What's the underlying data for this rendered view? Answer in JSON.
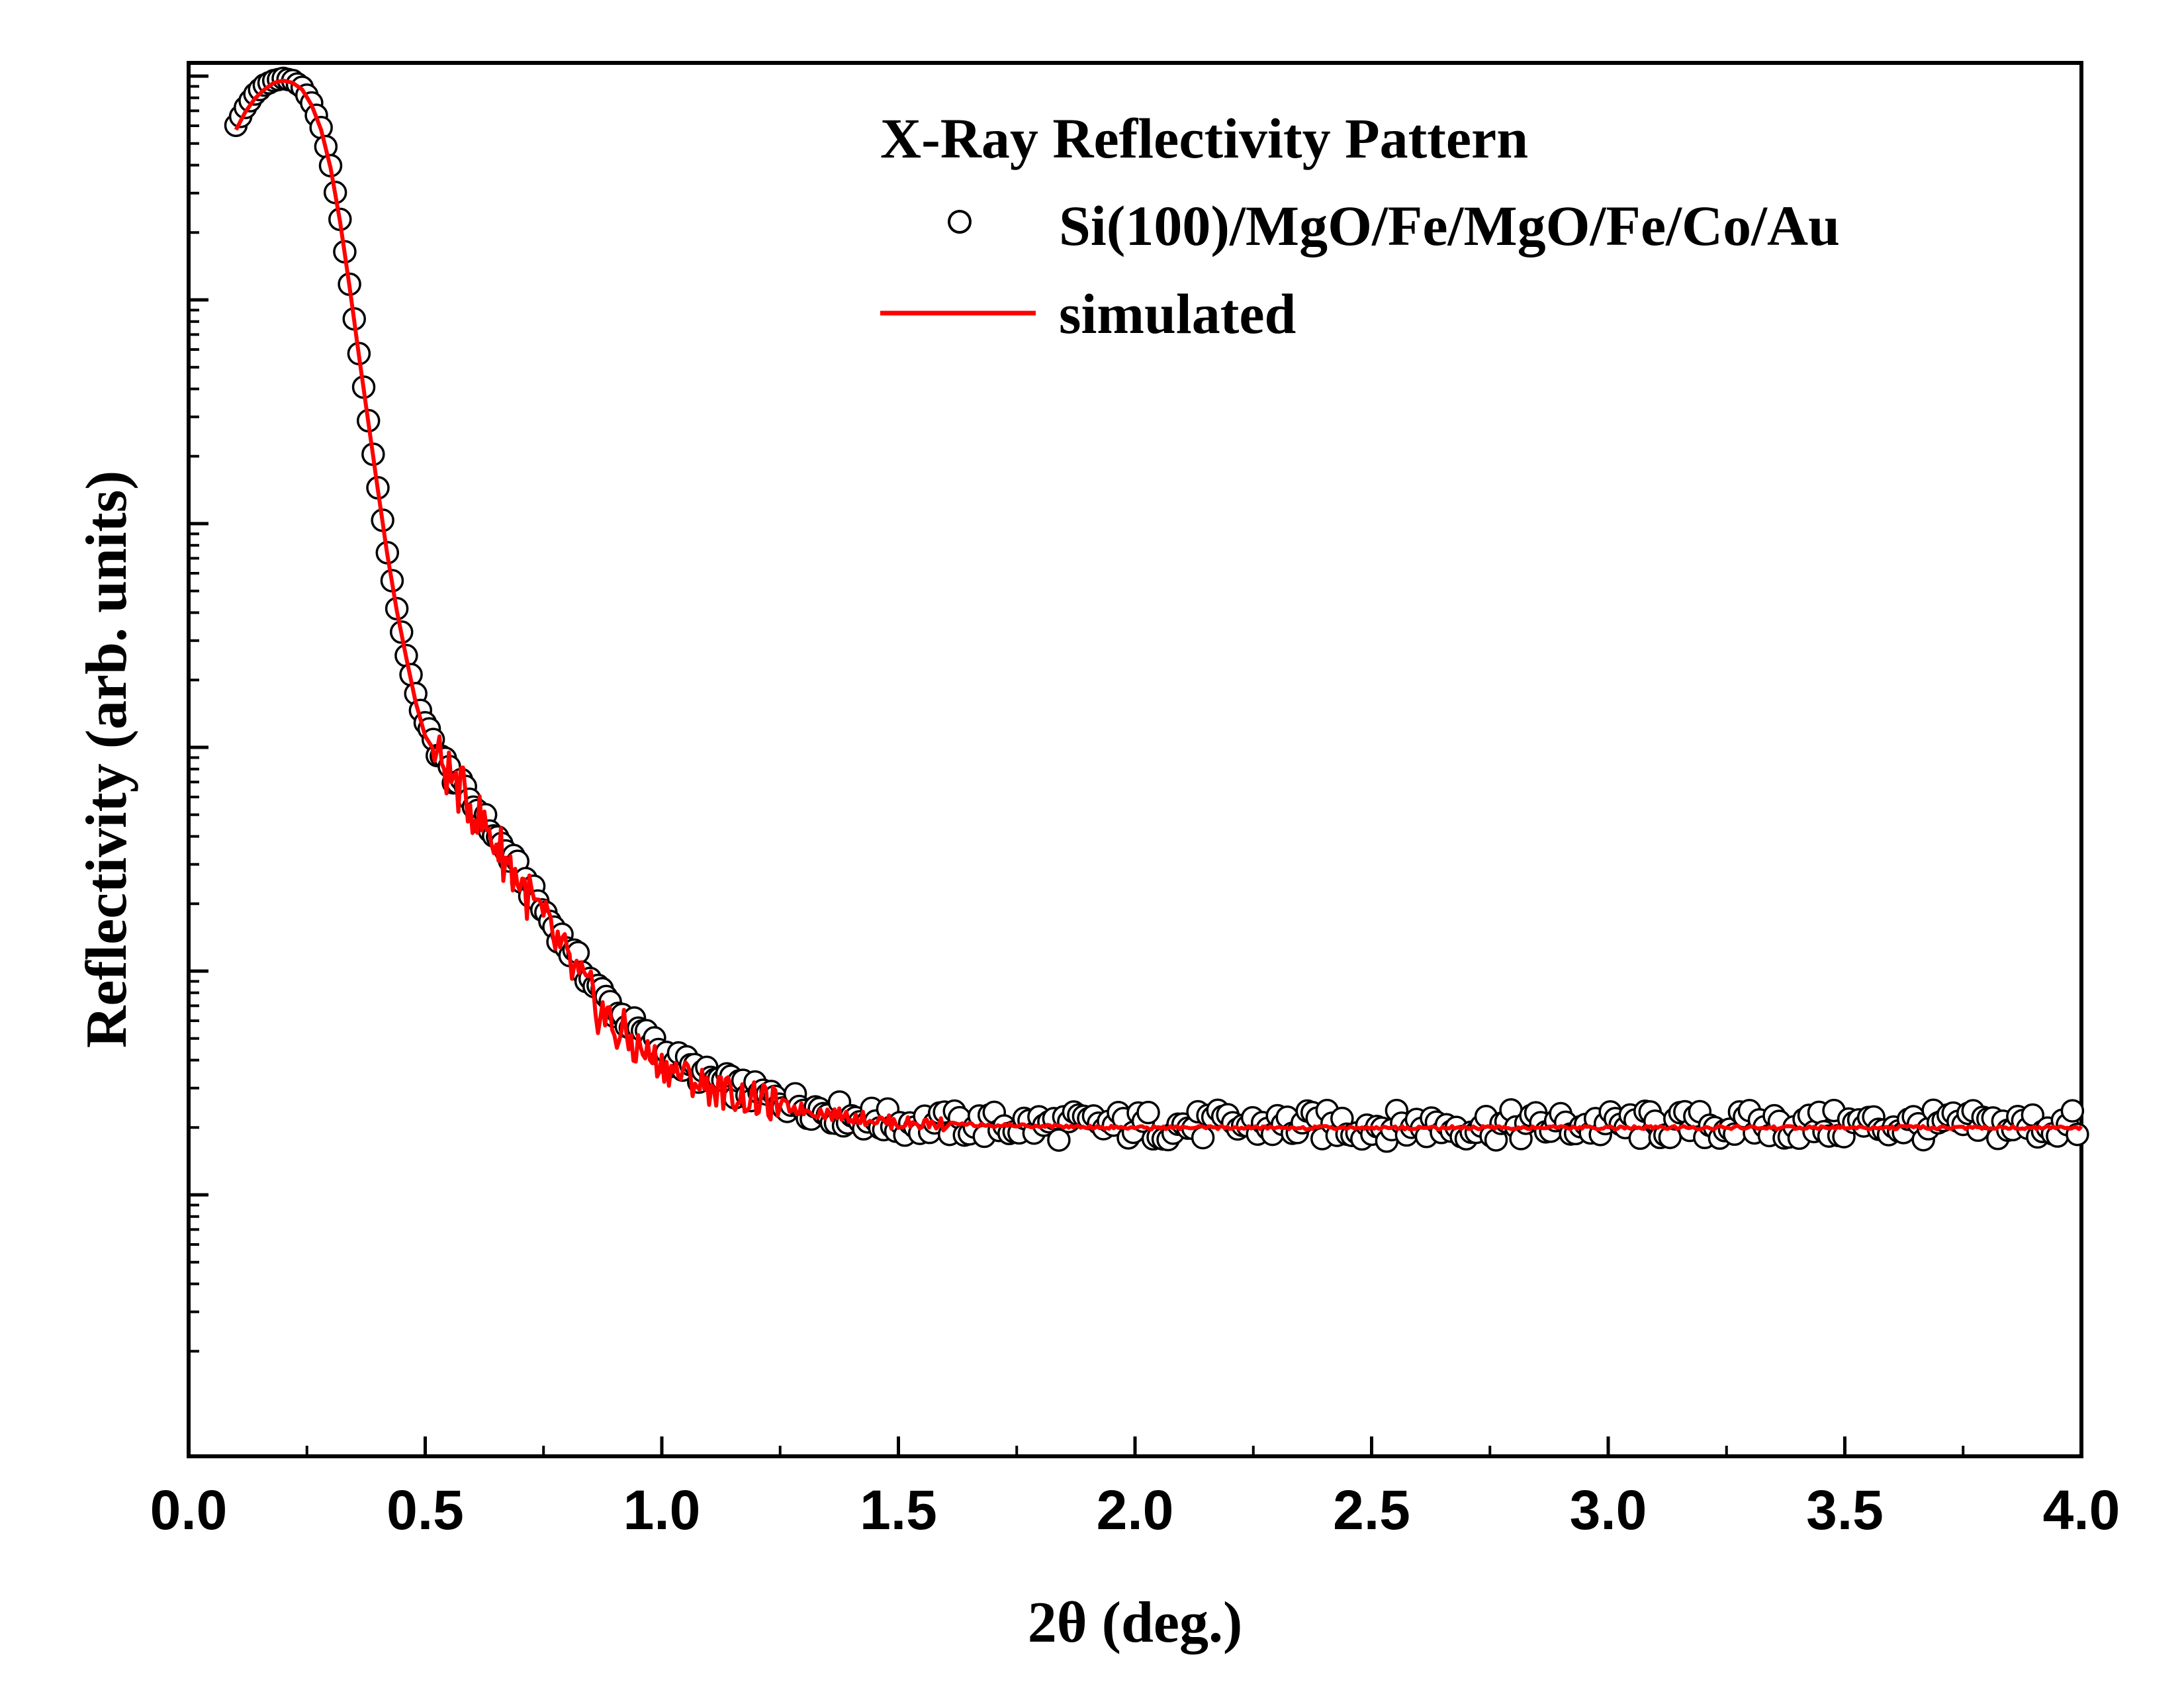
{
  "chart_data": {
    "type": "scatter",
    "title": "X-Ray Reflectivity Pattern",
    "xlabel": "2θ (deg.)",
    "ylabel": "Reflectivity (arb. units)",
    "xlim": [
      0.0,
      4.0
    ],
    "xticks": [
      "0.0",
      "0.5",
      "1.0",
      "1.5",
      "2.0",
      "2.5",
      "3.0",
      "3.5",
      "4.0"
    ],
    "ylim_decades": [
      0,
      5
    ],
    "yscale": "log",
    "ytick_labels_shown": false,
    "grid": false,
    "legend_position": "top-right",
    "series": [
      {
        "name": "Si(100)/MgO/Fe/MgO/Fe/Co/Au",
        "style": "open-circle",
        "color": "#000000",
        "x": [
          0.1,
          0.12,
          0.14,
          0.16,
          0.18,
          0.2,
          0.22,
          0.24,
          0.26,
          0.28,
          0.3,
          0.32,
          0.34,
          0.36,
          0.38,
          0.4,
          0.42,
          0.44,
          0.46,
          0.48,
          0.5,
          0.55,
          0.6,
          0.65,
          0.7,
          0.75,
          0.8,
          0.85,
          0.9,
          1.0,
          1.1,
          1.2,
          1.3,
          1.4,
          1.5,
          1.75,
          2.0,
          2.5,
          3.0,
          3.5,
          4.0
        ],
        "log_y": [
          4.78,
          4.86,
          4.92,
          4.96,
          4.98,
          4.99,
          4.98,
          4.95,
          4.88,
          4.77,
          4.6,
          4.36,
          4.07,
          3.76,
          3.46,
          3.16,
          2.87,
          2.62,
          2.41,
          2.24,
          2.09,
          1.9,
          1.75,
          1.6,
          1.44,
          1.27,
          1.11,
          0.96,
          0.83,
          0.64,
          0.52,
          0.45,
          0.4,
          0.35,
          0.32,
          0.31,
          0.31,
          0.31,
          0.31,
          0.31,
          0.31
        ]
      },
      {
        "name": "simulated",
        "style": "line",
        "color": "#ff0000",
        "x": [
          0.1,
          0.12,
          0.14,
          0.16,
          0.18,
          0.2,
          0.22,
          0.24,
          0.26,
          0.28,
          0.3,
          0.32,
          0.34,
          0.36,
          0.38,
          0.4,
          0.42,
          0.44,
          0.46,
          0.48,
          0.5,
          0.55,
          0.6,
          0.65,
          0.7,
          0.75,
          0.8,
          0.85,
          0.9,
          1.0,
          1.1,
          1.2,
          1.3,
          1.4,
          1.5,
          1.75,
          2.0,
          2.5,
          3.0,
          3.5,
          4.0
        ],
        "log_y": [
          4.76,
          4.84,
          4.9,
          4.94,
          4.97,
          4.98,
          4.97,
          4.94,
          4.87,
          4.76,
          4.59,
          4.35,
          4.06,
          3.75,
          3.45,
          3.15,
          2.86,
          2.61,
          2.4,
          2.2,
          2.05,
          1.88,
          1.73,
          1.57,
          1.4,
          1.22,
          1.04,
          0.88,
          0.74,
          0.58,
          0.48,
          0.42,
          0.38,
          0.35,
          0.32,
          0.31,
          0.3,
          0.3,
          0.3,
          0.3,
          0.3
        ]
      }
    ]
  }
}
